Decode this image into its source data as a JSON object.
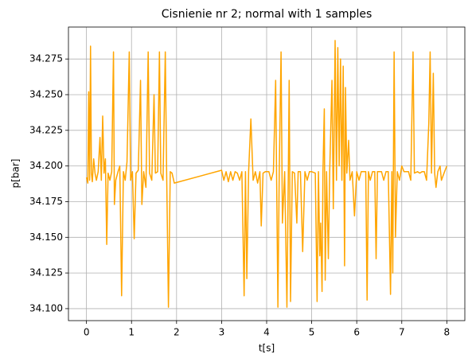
{
  "chart_data": {
    "type": "line",
    "title": "Cisnienie nr 2; normal with 1 samples",
    "xlabel": "t[s]",
    "ylabel": "p[bar]",
    "xlim": [
      -0.4,
      8.4
    ],
    "xticks": [
      0,
      1,
      2,
      3,
      4,
      5,
      6,
      7,
      8
    ],
    "ylim": [
      34.0916,
      34.2974
    ],
    "yticks": [
      {
        "value": 34.1,
        "label": "34.100"
      },
      {
        "value": 34.125,
        "label": "34.125"
      },
      {
        "value": 34.15,
        "label": "34.150"
      },
      {
        "value": 34.175,
        "label": "34.175"
      },
      {
        "value": 34.2,
        "label": "34.200"
      },
      {
        "value": 34.225,
        "label": "34.225"
      },
      {
        "value": 34.25,
        "label": "34.250"
      },
      {
        "value": 34.275,
        "label": "34.275"
      }
    ],
    "grid": true,
    "series": [
      {
        "color": "#ffa500",
        "x": [
          0.0,
          0.03,
          0.05,
          0.07,
          0.09,
          0.11,
          0.13,
          0.16,
          0.19,
          0.22,
          0.26,
          0.3,
          0.33,
          0.36,
          0.39,
          0.42,
          0.45,
          0.48,
          0.52,
          0.56,
          0.6,
          0.62,
          0.65,
          0.7,
          0.74,
          0.78,
          0.82,
          0.86,
          0.9,
          0.95,
          0.98,
          1.02,
          1.06,
          1.1,
          1.15,
          1.2,
          1.23,
          1.27,
          1.32,
          1.37,
          1.4,
          1.45,
          1.5,
          1.53,
          1.58,
          1.62,
          1.65,
          1.7,
          1.75,
          1.78,
          1.82,
          1.86,
          1.9,
          1.95,
          3.0,
          3.05,
          3.1,
          3.15,
          3.2,
          3.25,
          3.3,
          3.35,
          3.4,
          3.45,
          3.5,
          3.53,
          3.56,
          3.6,
          3.65,
          3.7,
          3.75,
          3.8,
          3.85,
          3.88,
          3.92,
          3.97,
          4.05,
          4.1,
          4.15,
          4.2,
          4.25,
          4.28,
          4.32,
          4.35,
          4.4,
          4.45,
          4.48,
          4.5,
          4.53,
          4.57,
          4.62,
          4.67,
          4.7,
          4.75,
          4.8,
          4.85,
          4.9,
          4.95,
          5.0,
          5.08,
          5.12,
          5.15,
          5.18,
          5.2,
          5.23,
          5.25,
          5.28,
          5.3,
          5.33,
          5.37,
          5.4,
          5.45,
          5.48,
          5.52,
          5.55,
          5.58,
          5.61,
          5.64,
          5.67,
          5.7,
          5.73,
          5.75,
          5.78,
          5.82,
          5.85,
          5.9,
          5.95,
          6.0,
          6.05,
          6.1,
          6.2,
          6.23,
          6.26,
          6.3,
          6.35,
          6.4,
          6.43,
          6.46,
          6.55,
          6.6,
          6.65,
          6.7,
          6.75,
          6.78,
          6.8,
          6.83,
          6.86,
          6.9,
          6.95,
          7.0,
          7.05,
          7.15,
          7.2,
          7.25,
          7.28,
          7.35,
          7.4,
          7.45,
          7.5,
          7.55,
          7.6,
          7.63,
          7.66,
          7.7,
          7.73,
          7.76,
          7.8,
          7.85,
          7.88,
          7.95,
          8.0
        ],
        "values": [
          34.192,
          34.188,
          34.252,
          34.19,
          34.284,
          34.195,
          34.189,
          34.205,
          34.195,
          34.19,
          34.196,
          34.22,
          34.19,
          34.235,
          34.195,
          34.205,
          34.145,
          34.195,
          34.19,
          34.196,
          34.28,
          34.173,
          34.19,
          34.196,
          34.2,
          34.109,
          34.196,
          34.19,
          34.203,
          34.28,
          34.19,
          34.196,
          34.149,
          34.195,
          34.197,
          34.26,
          34.173,
          34.196,
          34.185,
          34.28,
          34.195,
          34.19,
          34.25,
          34.195,
          34.196,
          34.28,
          34.195,
          34.19,
          34.28,
          34.195,
          34.101,
          34.196,
          34.195,
          34.188,
          34.197,
          34.19,
          34.196,
          34.189,
          34.196,
          34.19,
          34.196,
          34.195,
          34.19,
          34.196,
          34.109,
          34.196,
          34.121,
          34.196,
          34.233,
          34.19,
          34.196,
          34.188,
          34.196,
          34.158,
          34.195,
          34.196,
          34.196,
          34.19,
          34.196,
          34.26,
          34.101,
          34.196,
          34.28,
          34.16,
          34.196,
          34.101,
          34.19,
          34.26,
          34.105,
          34.196,
          34.195,
          34.16,
          34.196,
          34.196,
          34.14,
          34.196,
          34.19,
          34.196,
          34.196,
          34.195,
          34.105,
          34.196,
          34.137,
          34.16,
          34.112,
          34.196,
          34.24,
          34.12,
          34.196,
          34.135,
          34.196,
          34.26,
          34.17,
          34.288,
          34.19,
          34.283,
          34.2,
          34.275,
          34.19,
          34.27,
          34.13,
          34.255,
          34.195,
          34.218,
          34.19,
          34.196,
          34.165,
          34.196,
          34.19,
          34.196,
          34.196,
          34.106,
          34.196,
          34.19,
          34.196,
          34.196,
          34.135,
          34.196,
          34.196,
          34.19,
          34.196,
          34.196,
          34.11,
          34.196,
          34.125,
          34.28,
          34.15,
          34.196,
          34.19,
          34.2,
          34.196,
          34.196,
          34.19,
          34.28,
          34.195,
          34.196,
          34.195,
          34.196,
          34.196,
          34.19,
          34.23,
          34.28,
          34.195,
          34.265,
          34.195,
          34.185,
          34.196,
          34.2,
          34.19,
          34.196,
          34.2
        ]
      }
    ]
  }
}
